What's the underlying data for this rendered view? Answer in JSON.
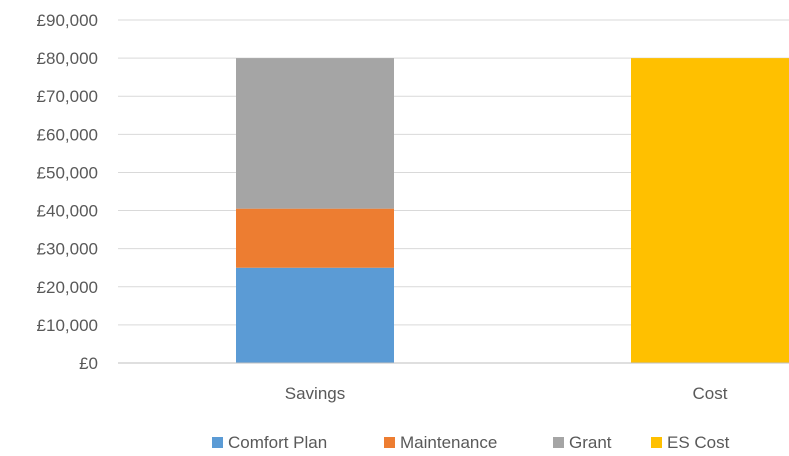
{
  "chart_data": {
    "type": "bar",
    "stacked": true,
    "categories": [
      "Savings",
      "Cost"
    ],
    "series": [
      {
        "name": "Comfort Plan",
        "color": "#5b9bd5",
        "values": [
          25000,
          0
        ]
      },
      {
        "name": "Maintenance",
        "color": "#ed7d31",
        "values": [
          15500,
          0
        ]
      },
      {
        "name": "Grant",
        "color": "#a5a5a5",
        "values": [
          39500,
          0
        ]
      },
      {
        "name": "ES Cost",
        "color": "#ffc000",
        "values": [
          0,
          80000
        ]
      }
    ],
    "y_ticks": [
      "£0",
      "£10,000",
      "£20,000",
      "£30,000",
      "£40,000",
      "£50,000",
      "£60,000",
      "£70,000",
      "£80,000",
      "£90,000"
    ],
    "ylim": [
      0,
      90000
    ],
    "grid": true,
    "legend_position": "bottom"
  }
}
